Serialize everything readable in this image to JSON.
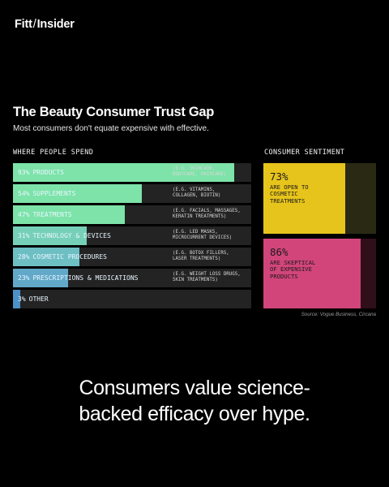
{
  "brand": {
    "part1": "Fitt",
    "sep": "/",
    "part2": "Insider"
  },
  "header": {
    "title": "The Beauty Consumer Trust Gap",
    "subtitle": "Most consumers don't equate expensive with effective."
  },
  "spend_label": "WHERE PEOPLE SPEND",
  "sentiment_label": "CONSUMER SENTIMENT",
  "source": "Source: Vogue Business, Circana",
  "headline": {
    "line1": "Consumers value science-",
    "line2": "backed efficacy over hype."
  },
  "colors": {
    "bar_fills": [
      "#7de3a9",
      "#7de3a9",
      "#7de3a9",
      "#76d0b7",
      "#6ebfc3",
      "#62a9c9",
      "#4c90c8"
    ],
    "yellow": "#e7c41c",
    "pink": "#d2457b"
  },
  "chart_data": [
    {
      "type": "bar",
      "title": "WHERE PEOPLE SPEND",
      "ylim": [
        0,
        100
      ],
      "categories": [
        "PRODUCTS",
        "SUPPLEMENTS",
        "TREATMENTS",
        "TECHNOLOGY & DEVICES",
        "COSMETIC PROCEDURES",
        "PRESCRIPTIONS & MEDICATIONS",
        "OTHER"
      ],
      "values": [
        93,
        54,
        47,
        31,
        28,
        23,
        3
      ],
      "value_labels": [
        "93%",
        "54%",
        "47%",
        "31%",
        "28%",
        "23%",
        "3%"
      ],
      "examples": [
        "(E.G. SKINCARE,\nBODYCARE, HAIRCARE)",
        "(E.G. VITAMINS,\nCOLLAGEN, BIOTIN)",
        "(E.G. FACIALS, MASSAGES,\nKERATIN TREATMENTS)",
        "(E.G. LED MASKS,\nMICROCURRENT DEVICES)",
        "(E.G. BOTOX FILLERS,\nLASER TREATMENTS)",
        "(E.G. WEIGHT LOSS DRUGS,\nSKIN TREATMENTS)",
        ""
      ]
    },
    {
      "type": "bar",
      "title": "CONSUMER SENTIMENT",
      "ylim": [
        0,
        100
      ],
      "categories": [
        "ARE OPEN TO\nCOSMETIC\nTREATMENTS",
        "ARE SKEPTICAL\nOF EXPENSIVE\nPRODUCTS"
      ],
      "values": [
        73,
        86
      ],
      "value_labels": [
        "73%",
        "86%"
      ]
    }
  ]
}
